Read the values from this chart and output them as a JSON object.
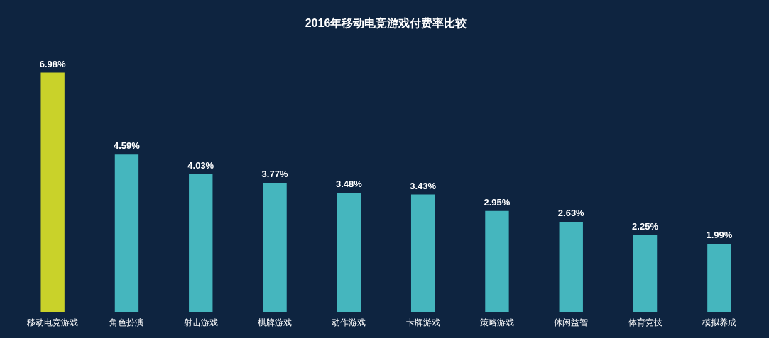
{
  "chart_data": {
    "type": "bar",
    "title": "2016年移动电竞游戏付费率比较",
    "categories": [
      "移动电竞游戏",
      "角色扮演",
      "射击游戏",
      "棋牌游戏",
      "动作游戏",
      "卡牌游戏",
      "策略游戏",
      "休闲益智",
      "体育竞技",
      "模拟养成"
    ],
    "values": [
      6.98,
      4.59,
      4.03,
      3.77,
      3.48,
      3.43,
      2.95,
      2.63,
      2.25,
      1.99
    ],
    "colors": [
      "#c9d22a",
      "#45b6be",
      "#45b6be",
      "#45b6be",
      "#45b6be",
      "#45b6be",
      "#45b6be",
      "#45b6be",
      "#45b6be",
      "#45b6be"
    ],
    "value_labels": [
      "6.98%",
      "4.59%",
      "4.03%",
      "3.77%",
      "3.48%",
      "3.43%",
      "2.95%",
      "2.63%",
      "2.25%",
      "1.99%"
    ],
    "grid": false,
    "legend": false
  }
}
